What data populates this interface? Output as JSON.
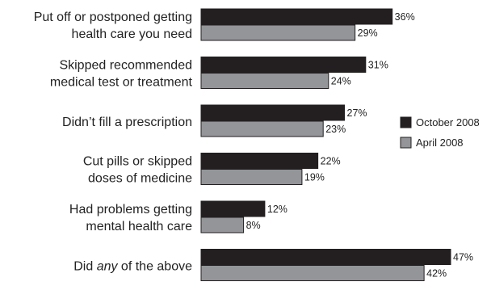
{
  "chart_data": {
    "type": "bar",
    "orientation": "horizontal",
    "categories": [
      [
        "Put off or postponed getting",
        "health care you need"
      ],
      [
        "Skipped recommended",
        "medical test or treatment"
      ],
      [
        "Didn’t fill a prescription"
      ],
      [
        "Cut pills or skipped",
        "doses of medicine"
      ],
      [
        "Had problems getting",
        "mental health care"
      ],
      [
        "Did ",
        "any",
        " of the above"
      ]
    ],
    "series": [
      {
        "name": "October 2008",
        "values": [
          36,
          31,
          27,
          22,
          12,
          47
        ],
        "color": "#231f20"
      },
      {
        "name": "April 2008",
        "values": [
          29,
          24,
          23,
          19,
          8,
          42
        ],
        "color": "#939598"
      }
    ],
    "value_suffix": "%",
    "xlim": [
      0,
      47
    ],
    "legend_position": "right",
    "grid": false
  }
}
